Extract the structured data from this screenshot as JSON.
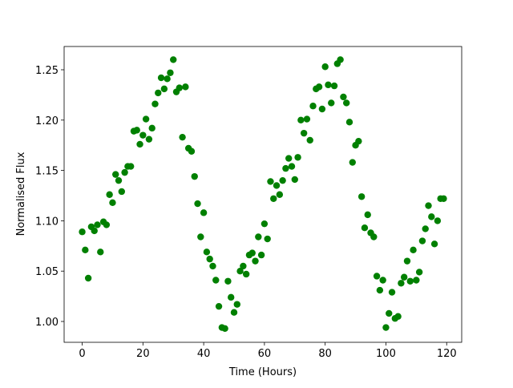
{
  "chart_data": {
    "type": "scatter",
    "xlabel": "Time (Hours)",
    "ylabel": "Normalised Flux",
    "series": [
      {
        "color": "#008000",
        "x": [
          0,
          1,
          2,
          3,
          4,
          5,
          6,
          7,
          8,
          9,
          10,
          11,
          12,
          13,
          14,
          15,
          16,
          17,
          18,
          19,
          20,
          21,
          22,
          23,
          24,
          25,
          26,
          27,
          28,
          29,
          30,
          31,
          32,
          33,
          34,
          35,
          36,
          37,
          38,
          39,
          40,
          41,
          42,
          43,
          44,
          45,
          46,
          47,
          48,
          49,
          50,
          51,
          52,
          53,
          54,
          55,
          56,
          57,
          58,
          59,
          60,
          61,
          62,
          63,
          64,
          65,
          66,
          67,
          68,
          69,
          70,
          71,
          72,
          73,
          74,
          75,
          76,
          77,
          78,
          79,
          80,
          81,
          82,
          83,
          84,
          85,
          86,
          87,
          88,
          89,
          90,
          91,
          92,
          93,
          94,
          95,
          96,
          97,
          98,
          99,
          100,
          101,
          102,
          103,
          104,
          105,
          106,
          107,
          108,
          109,
          110,
          111,
          112,
          113,
          114,
          115,
          116,
          117,
          118,
          119
        ],
        "values": [
          1.089,
          1.071,
          1.043,
          1.094,
          1.09,
          1.096,
          1.069,
          1.099,
          1.096,
          1.126,
          1.118,
          1.146,
          1.14,
          1.129,
          1.148,
          1.154,
          1.154,
          1.189,
          1.19,
          1.176,
          1.185,
          1.201,
          1.181,
          1.192,
          1.216,
          1.227,
          1.242,
          1.231,
          1.241,
          1.247,
          1.26,
          1.228,
          1.232,
          1.183,
          1.233,
          1.172,
          1.169,
          1.144,
          1.117,
          1.084,
          1.108,
          1.069,
          1.062,
          1.055,
          1.041,
          1.015,
          0.994,
          0.993,
          1.04,
          1.024,
          1.009,
          1.017,
          1.05,
          1.055,
          1.047,
          1.066,
          1.068,
          1.06,
          1.084,
          1.066,
          1.097,
          1.082,
          1.139,
          1.122,
          1.135,
          1.126,
          1.14,
          1.152,
          1.162,
          1.154,
          1.141,
          1.163,
          1.2,
          1.187,
          1.201,
          1.18,
          1.214,
          1.231,
          1.233,
          1.211,
          1.253,
          1.235,
          1.217,
          1.234,
          1.256,
          1.26,
          1.223,
          1.217,
          1.198,
          1.158,
          1.175,
          1.179,
          1.124,
          1.093,
          1.106,
          1.088,
          1.084,
          1.045,
          1.031,
          1.041,
          0.994,
          1.008,
          1.029,
          1.003,
          1.005,
          1.038,
          1.044,
          1.06,
          1.04,
          1.071,
          1.041,
          1.049,
          1.08,
          1.092,
          1.115,
          1.104,
          1.077,
          1.1,
          1.122,
          1.122
        ]
      }
    ],
    "xlim": [
      -5.95,
      124.95
    ],
    "ylim": [
      0.9793,
      1.2731
    ],
    "xticks": [
      0,
      20,
      40,
      60,
      80,
      100,
      120
    ],
    "yticks": [
      {
        "value": 1,
        "label": "1.00"
      },
      1.05,
      {
        "value": 1.1,
        "label": "1.10"
      },
      1.15,
      {
        "value": 1.2,
        "label": "1.20"
      },
      1.25
    ],
    "grid": false
  }
}
